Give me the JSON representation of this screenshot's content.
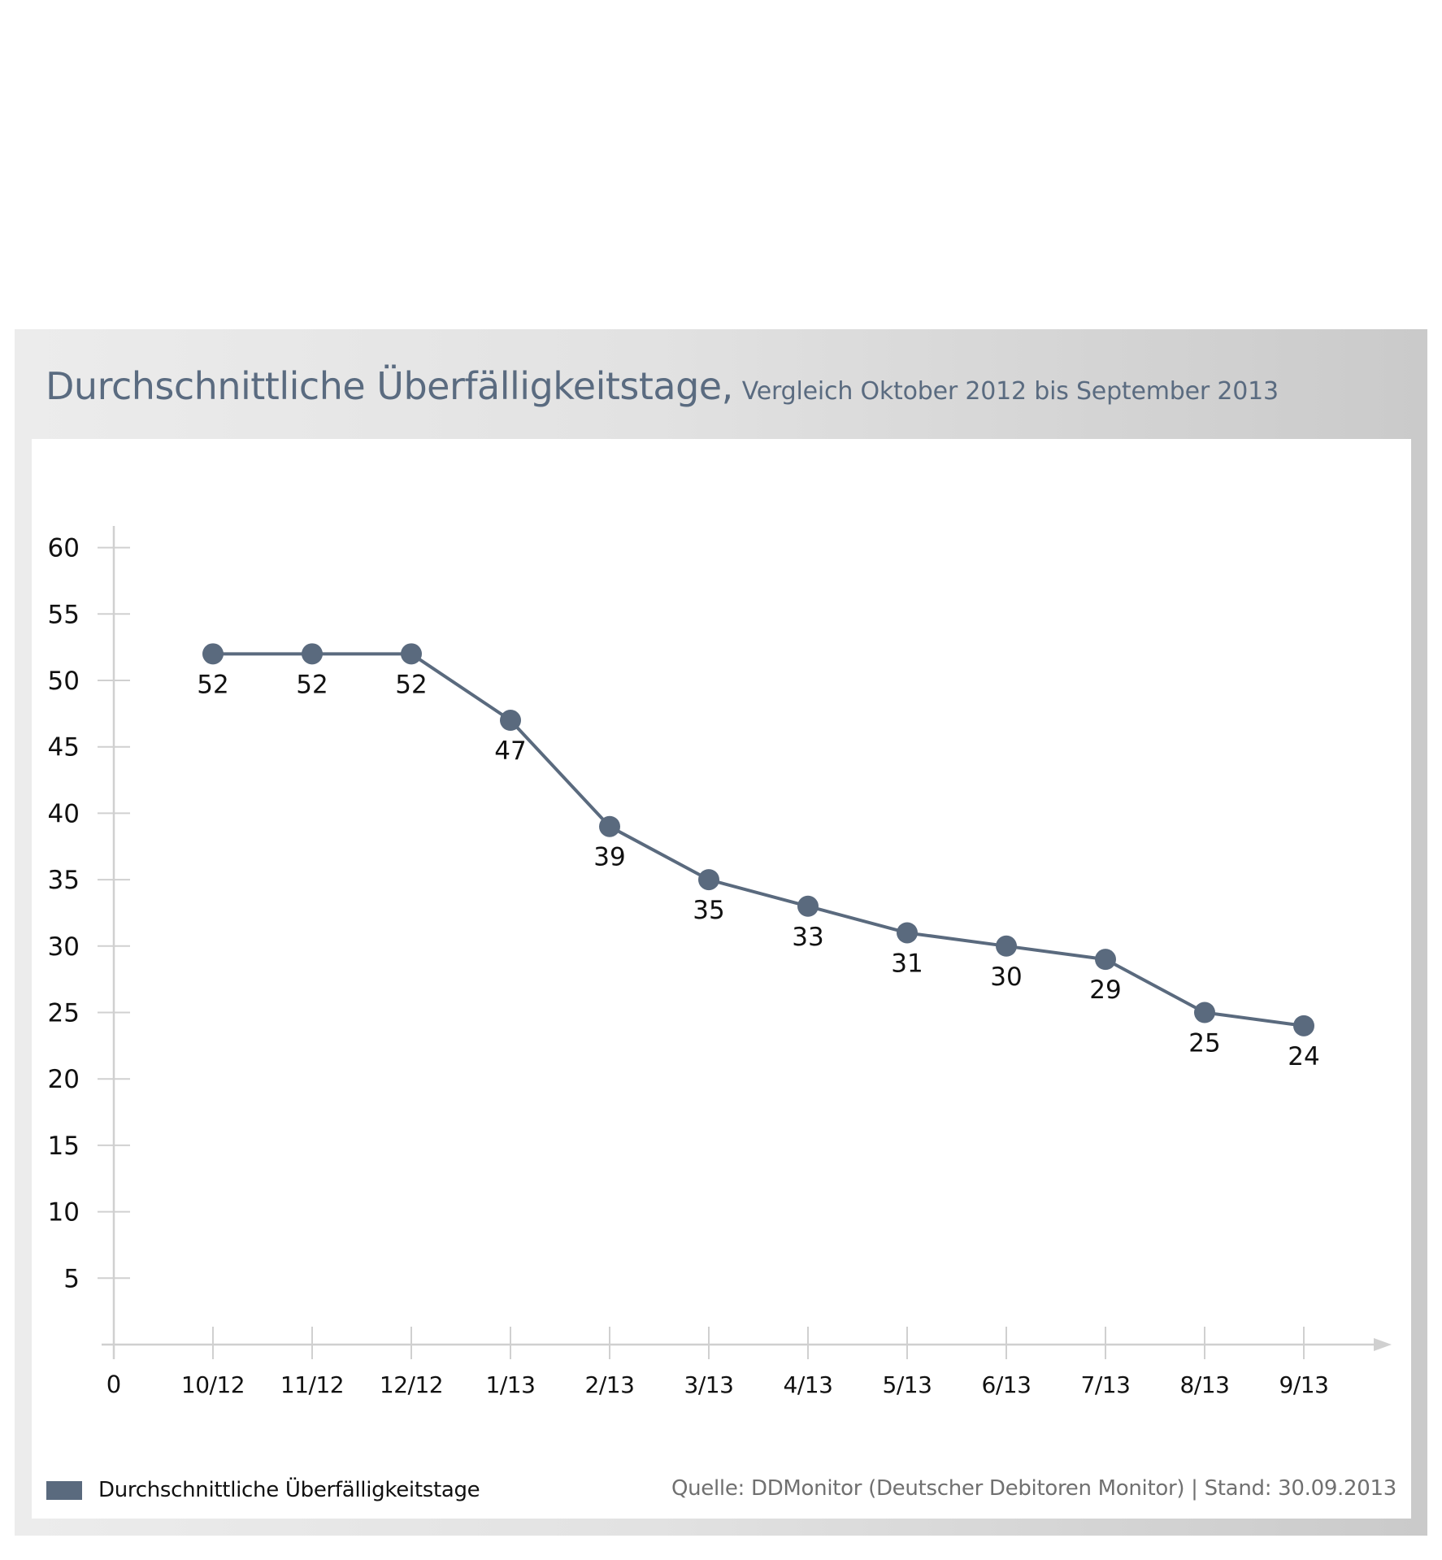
{
  "header": {
    "title": "Durchschnittliche Überfälligkeitstage,",
    "subtitle": "Vergleich Oktober 2012 bis September 2013"
  },
  "legend": {
    "label": "Durchschnittliche Überfälligkeitstage",
    "color": "#5a6a7e"
  },
  "footer": {
    "source": "Quelle: DDMonitor (Deutscher Debitoren Monitor) | Stand: 30.09.2013"
  },
  "colors": {
    "series": "#5a6a7e",
    "axis": "#d0d0d0",
    "title": "#5a6b80",
    "frame_light": "#ececec",
    "frame_dark": "#cacaca"
  },
  "chart_data": {
    "type": "line",
    "title": "Durchschnittliche Überfälligkeitstage, Vergleich Oktober 2012 bis September 2013",
    "xlabel": "",
    "ylabel": "",
    "x_origin_label": "0",
    "categories": [
      "10/12",
      "11/12",
      "12/12",
      "1/13",
      "2/13",
      "3/13",
      "4/13",
      "5/13",
      "6/13",
      "7/13",
      "8/13",
      "9/13"
    ],
    "series": [
      {
        "name": "Durchschnittliche Überfälligkeitstage",
        "values": [
          52,
          52,
          52,
          47,
          39,
          35,
          33,
          31,
          30,
          29,
          25,
          24
        ],
        "data_labels": true
      }
    ],
    "ylim": [
      0,
      60
    ],
    "yticks": [
      5,
      10,
      15,
      20,
      25,
      30,
      35,
      40,
      45,
      50,
      55,
      60
    ],
    "grid": false,
    "legend_position": "bottom-left",
    "source": "Quelle: DDMonitor (Deutscher Debitoren Monitor) | Stand: 30.09.2013"
  }
}
